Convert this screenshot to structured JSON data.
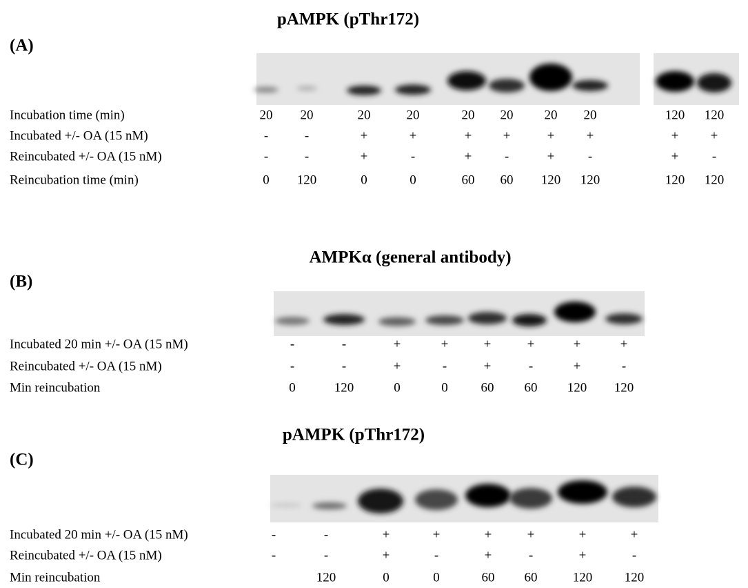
{
  "panels": [
    {
      "label": "(A)",
      "title": "pAMPK (pThr172)",
      "rows": [
        {
          "label": "Incubation time (min)",
          "cells": [
            "20",
            "20",
            "20",
            "20",
            "20",
            "20",
            "20",
            "20",
            "120",
            "120"
          ]
        },
        {
          "label": "Incubated +/- OA (15 nM)",
          "cells": [
            "-",
            "-",
            "+",
            "+",
            "+",
            "+",
            "+",
            "+",
            "+",
            "+"
          ]
        },
        {
          "label": "Reincubated +/- OA (15 nM)",
          "cells": [
            "-",
            "-",
            "+",
            "-",
            "+",
            "-",
            "+",
            "-",
            "+",
            "-"
          ]
        },
        {
          "label": "Reincubation time (min)",
          "cells": [
            "0",
            "120",
            "0",
            "0",
            "60",
            "60",
            "120",
            "120",
            "120",
            "120"
          ]
        }
      ]
    },
    {
      "label": "(B)",
      "title": "AMPKα (general antibody)",
      "rows": [
        {
          "label": "Incubated 20 min +/- OA (15 nM)",
          "cells": [
            "-",
            "-",
            "+",
            "+",
            "+",
            "+",
            "+",
            "+"
          ]
        },
        {
          "label": "Reincubated +/- OA (15 nM)",
          "cells": [
            "-",
            "-",
            "+",
            "-",
            "+",
            "-",
            "+",
            "-"
          ]
        },
        {
          "label": "Min reincubation",
          "cells": [
            "0",
            "120",
            "0",
            "0",
            "60",
            "60",
            "120",
            "120"
          ]
        }
      ]
    },
    {
      "label": "(C)",
      "title": "pAMPK (pThr172)",
      "rows": [
        {
          "label": "Incubated 20 min +/- OA (15 nM)",
          "cells": [
            "-",
            "-",
            "+",
            "+",
            "+",
            "+",
            "+",
            "+"
          ]
        },
        {
          "label": "Reincubated +/- OA (15 nM)",
          "cells": [
            "-",
            "-",
            "+",
            "-",
            "+",
            "-",
            "+",
            "-"
          ]
        },
        {
          "label": "Min reincubation",
          "cells": [
            null,
            "120",
            "0",
            "0",
            "60",
            "60",
            "120",
            "120"
          ]
        }
      ]
    }
  ]
}
